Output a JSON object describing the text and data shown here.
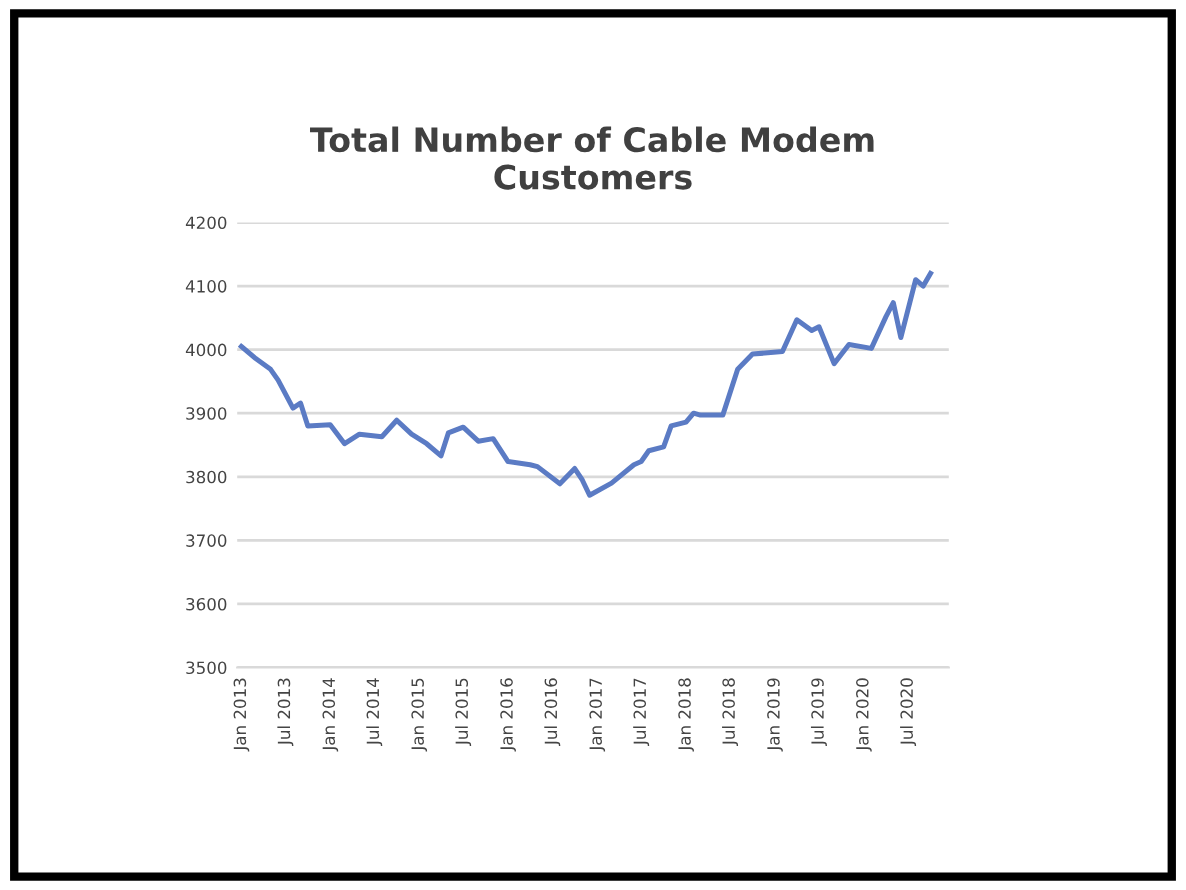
{
  "chart_data": {
    "type": "line",
    "title": "Total Number of Cable Modem\nCustomers",
    "x": [
      "2013-01",
      "2013-03",
      "2013-05",
      "2013-06",
      "2013-08",
      "2013-09",
      "2013-10",
      "2014-01",
      "2014-03",
      "2014-05",
      "2014-08",
      "2014-10",
      "2014-12",
      "2015-02",
      "2015-04",
      "2015-05",
      "2015-07",
      "2015-09",
      "2015-11",
      "2016-01",
      "2016-04",
      "2016-05",
      "2016-08",
      "2016-10",
      "2016-11",
      "2016-12",
      "2017-03",
      "2017-06",
      "2017-07",
      "2017-08",
      "2017-10",
      "2017-11",
      "2018-01",
      "2018-02",
      "2018-03",
      "2018-06",
      "2018-08",
      "2018-10",
      "2019-02",
      "2019-04",
      "2019-06",
      "2019-07",
      "2019-09",
      "2019-11",
      "2020-02",
      "2020-04",
      "2020-05",
      "2020-06",
      "2020-08",
      "2020-09",
      "2020-10"
    ],
    "series": [
      {
        "color": "#5b7bc4",
        "values": [
          4005,
          3986,
          3969,
          3952,
          3908,
          3916,
          3880,
          3882,
          3852,
          3867,
          3863,
          3889,
          3867,
          3852,
          3833,
          3869,
          3878,
          3856,
          3860,
          3824,
          3819,
          3816,
          3789,
          3813,
          3795,
          3771,
          3790,
          3819,
          3824,
          3841,
          3847,
          3880,
          3886,
          3900,
          3897,
          3897,
          3969,
          3993,
          3997,
          4047,
          4030,
          4036,
          3978,
          4008,
          4002,
          4052,
          4074,
          4019,
          4110,
          4100,
          4120
        ]
      }
    ],
    "ylim": [
      3500,
      4200
    ],
    "yticks": [
      3500,
      3600,
      3700,
      3800,
      3900,
      4000,
      4100,
      4200
    ],
    "xlim": [
      "2012-12-15",
      "2020-12-15"
    ],
    "xticks": [
      {
        "value": "2013-01",
        "label": "Jan 2013"
      },
      {
        "value": "2013-07",
        "label": "Jul 2013"
      },
      {
        "value": "2014-01",
        "label": "Jan 2014"
      },
      {
        "value": "2014-07",
        "label": "Jul 2014"
      },
      {
        "value": "2015-01",
        "label": "Jan 2015"
      },
      {
        "value": "2015-07",
        "label": "Jul 2015"
      },
      {
        "value": "2016-01",
        "label": "Jan 2016"
      },
      {
        "value": "2016-07",
        "label": "Jul 2016"
      },
      {
        "value": "2017-01",
        "label": "Jan 2017"
      },
      {
        "value": "2017-07",
        "label": "Jul 2017"
      },
      {
        "value": "2018-01",
        "label": "Jan 2018"
      },
      {
        "value": "2018-07",
        "label": "Jul 2018"
      },
      {
        "value": "2019-01",
        "label": "Jan 2019"
      },
      {
        "value": "2019-07",
        "label": "Jul 2019"
      },
      {
        "value": "2020-01",
        "label": "Jan 2020"
      },
      {
        "value": "2020-07",
        "label": "Jul 2020"
      }
    ],
    "grid": "y",
    "marker": "none",
    "line_style": "solid"
  }
}
